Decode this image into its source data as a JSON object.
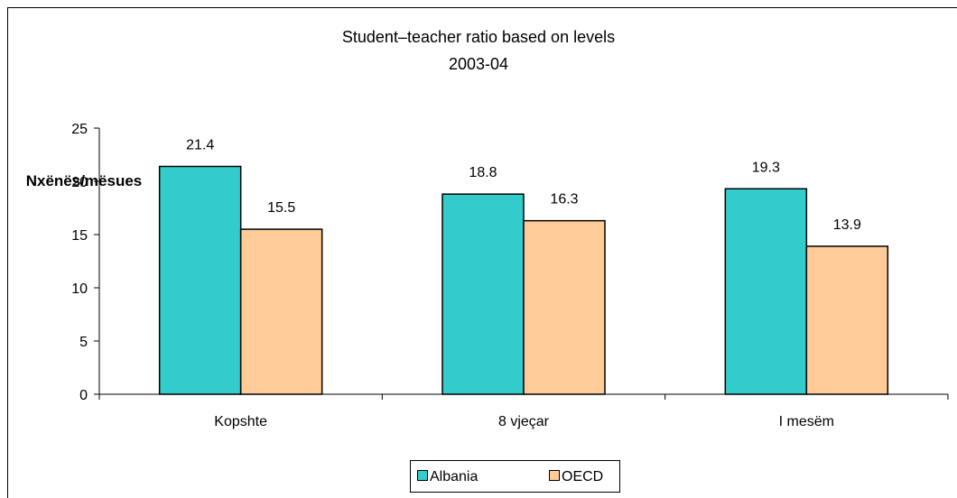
{
  "chart_data": {
    "type": "bar",
    "title": "Student–teacher ratio based on levels",
    "subtitle": "2003-04",
    "ylabel": "Nxënës/mësues",
    "xlabel": "",
    "categories": [
      "Kopshte",
      "8 vjeçar",
      "I mesëm"
    ],
    "series": [
      {
        "name": "Albania",
        "values": [
          21.4,
          18.8,
          19.3
        ],
        "labels": [
          "21.4",
          "18.8",
          "19.3"
        ],
        "color": "#33CCCC"
      },
      {
        "name": "OECD",
        "values": [
          15.5,
          16.3,
          13.9
        ],
        "labels": [
          "15.5",
          "16.3",
          "13.9"
        ],
        "color": "#FFCC99"
      }
    ],
    "ylim": [
      0,
      25
    ],
    "yticks": [
      0,
      5,
      10,
      15,
      20,
      25
    ],
    "ytick_labels": [
      "0",
      "5",
      "10",
      "15",
      "20",
      "25"
    ],
    "grid": false,
    "legend_position": "bottom"
  }
}
